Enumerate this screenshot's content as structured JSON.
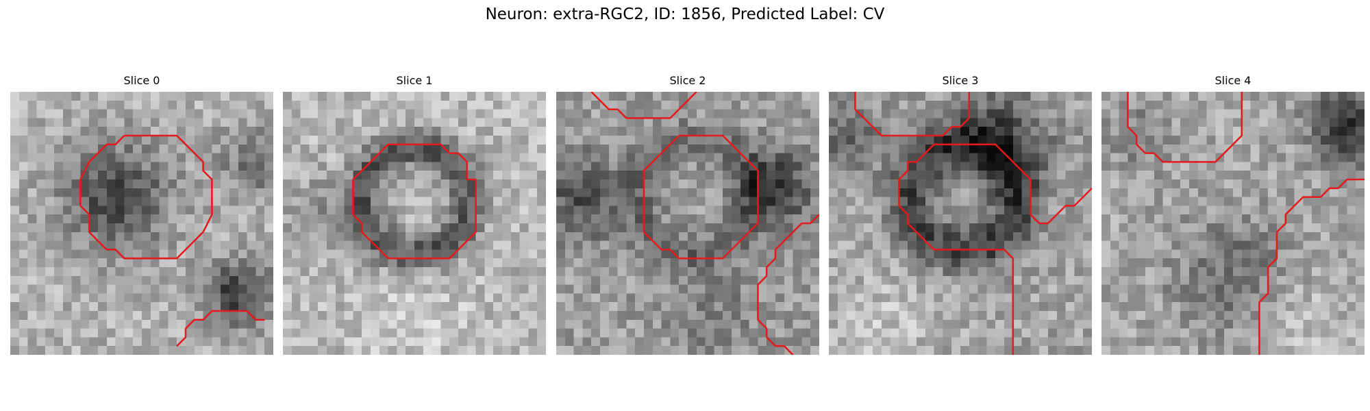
{
  "figure": {
    "title": "Neuron: extra-RGC2, ID: 1856, Predicted Label: CV"
  },
  "panels": [
    {
      "title": "Slice 0"
    },
    {
      "title": "Slice 1"
    },
    {
      "title": "Slice 2"
    },
    {
      "title": "Slice 3"
    },
    {
      "title": "Slice 4"
    }
  ],
  "colors": {
    "contour": "#e41a1c",
    "background": "#ffffff"
  },
  "colormap": "gray"
}
